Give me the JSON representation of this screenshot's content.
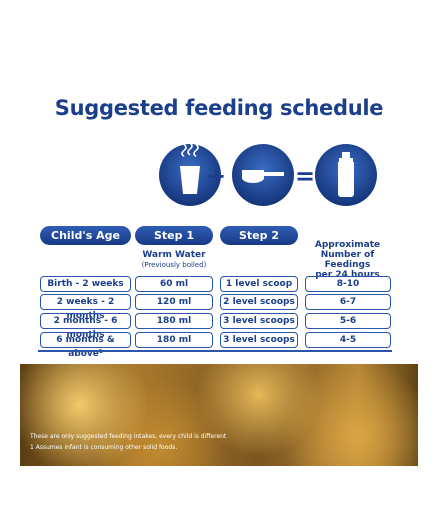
{
  "header": {
    "title": "Suggested feeding schedule"
  },
  "table": {
    "headers": [
      "Child's Age",
      "Step 1",
      "Step 2"
    ],
    "step1_note": "Warm Water",
    "step1_subnote": "(Previously boiled)",
    "feedings_header": [
      "Approximate",
      "Number of Feedings",
      "per 24 hours"
    ],
    "rows": [
      [
        "Birth - 2 weeks",
        "60 ml",
        "1 level scoop",
        "8-10"
      ],
      [
        "2 weeks - 2 months",
        "120 ml",
        "2 level scoops",
        "6-7"
      ],
      [
        "2 months - 6 months",
        "180 ml",
        "3 level scoops",
        "5-6"
      ],
      [
        "6 months & above¹",
        "180 ml",
        "3 level scoops",
        "4-5"
      ]
    ]
  },
  "footnotes": [
    "These are only suggested feeding intakes, every child is different",
    "1 Assumes infant is consuming other solid foods."
  ]
}
